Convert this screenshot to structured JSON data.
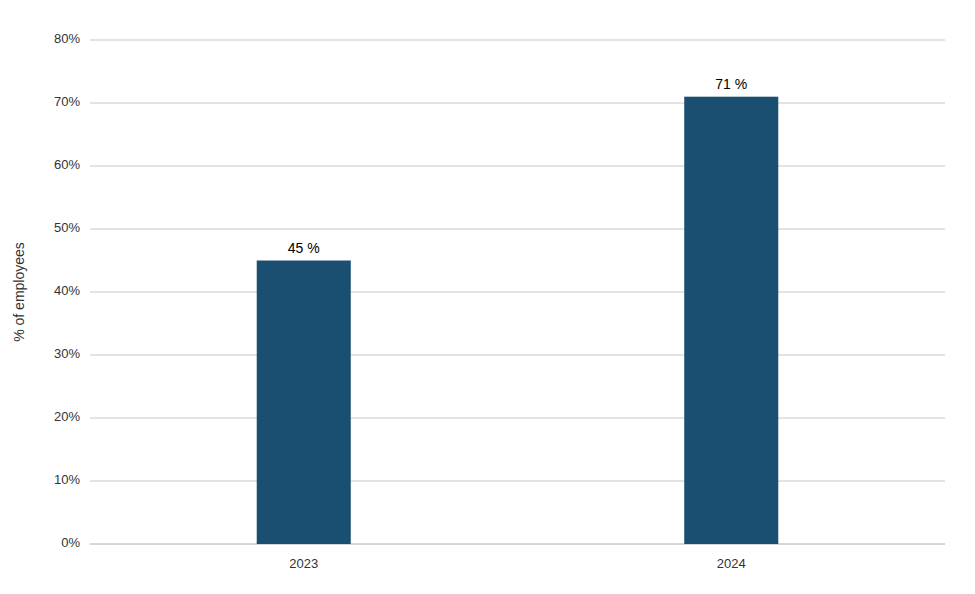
{
  "chart_data": {
    "type": "bar",
    "categories": [
      "2023",
      "2024"
    ],
    "values": [
      45,
      71
    ],
    "value_labels": [
      "45 %",
      "71 %"
    ],
    "data_labels": true,
    "color": "#1B4F72",
    "ylabel": "% of employees",
    "ylim": [
      0,
      80
    ],
    "yticks": [
      {
        "value": 0,
        "label": "0%"
      },
      {
        "value": 10,
        "label": "10%"
      },
      {
        "value": 20,
        "label": "20%"
      },
      {
        "value": 30,
        "label": "30%"
      },
      {
        "value": 40,
        "label": "40%"
      },
      {
        "value": 50,
        "label": "50%"
      },
      {
        "value": 60,
        "label": "60%"
      },
      {
        "value": 70,
        "label": "70%"
      },
      {
        "value": 80,
        "label": "80%"
      }
    ],
    "grid": true
  }
}
